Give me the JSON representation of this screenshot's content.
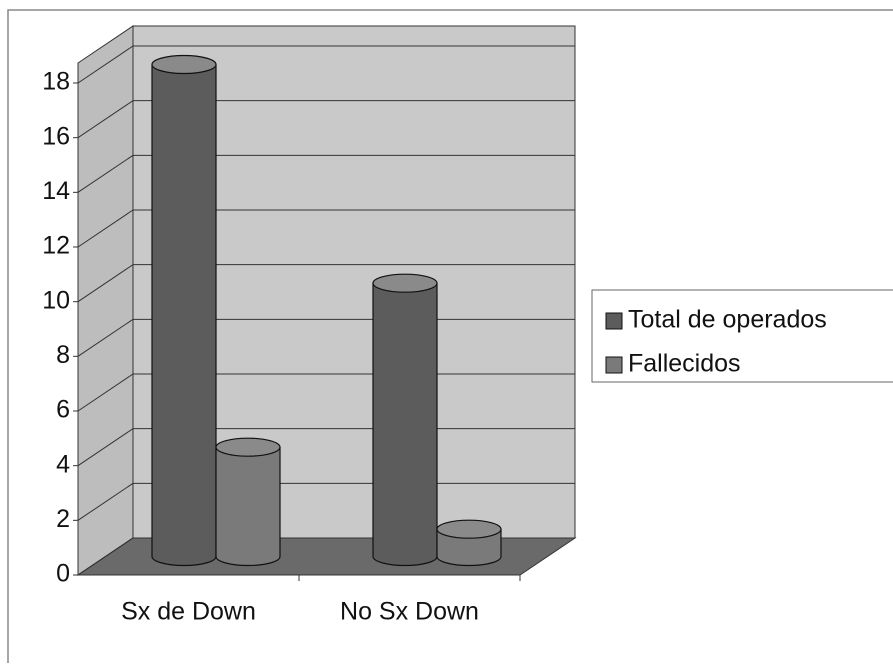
{
  "chart_data": {
    "type": "bar",
    "categories": [
      "Sx de Down",
      "No Sx Down"
    ],
    "series": [
      {
        "name": "Total de operados",
        "color": "#5c5c5c",
        "values": [
          18,
          10
        ]
      },
      {
        "name": "Fallecidos",
        "color": "#7a7a7a",
        "values": [
          4,
          1
        ]
      }
    ],
    "ylim": [
      0,
      18
    ],
    "yticks": [
      0,
      2,
      4,
      6,
      8,
      10,
      12,
      14,
      16,
      18
    ],
    "grid": true,
    "legend": "right"
  }
}
